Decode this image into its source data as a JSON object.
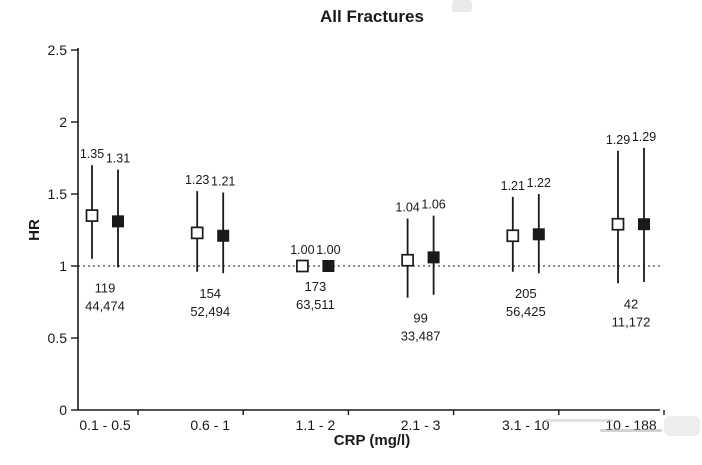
{
  "chart_data": {
    "type": "scatter",
    "subtype": "forest-plot-point-estimates-with-ci",
    "title": "All Fractures",
    "xlabel": "CRP (mg/l)",
    "ylabel": "HR",
    "ylim": [
      0,
      2.5
    ],
    "yticks": {
      "values": [
        0,
        0.5,
        1,
        1.5,
        2,
        2.5
      ],
      "labels": [
        "0",
        "0.5",
        "1",
        "1.5",
        "2",
        "2.5"
      ]
    },
    "reference_line_y": 1.0,
    "grid": false,
    "legend": "none",
    "categories": [
      "0.1 - 0.5",
      "0.6 - 1",
      "1.1 - 2",
      "2.1 - 3",
      "3.1 - 10",
      "10 - 188"
    ],
    "counts": [
      {
        "line1": "119",
        "line2": "44,474"
      },
      {
        "line1": "154",
        "line2": "52,494"
      },
      {
        "line1": "173",
        "line2": "63,511"
      },
      {
        "line1": "99",
        "line2": "33,487"
      },
      {
        "line1": "205",
        "line2": "56,425"
      },
      {
        "line1": "42",
        "line2": "11,172"
      }
    ],
    "series": [
      {
        "name": "open-square-series",
        "marker": "open-square",
        "labels": [
          "1.35",
          "1.23",
          "1.00",
          "1.04",
          "1.21",
          "1.29"
        ],
        "values": [
          1.35,
          1.23,
          1.0,
          1.04,
          1.21,
          1.29
        ],
        "ci_low": [
          1.05,
          0.96,
          1.0,
          0.78,
          0.96,
          0.88
        ],
        "ci_high": [
          1.7,
          1.52,
          1.0,
          1.33,
          1.48,
          1.8
        ]
      },
      {
        "name": "filled-square-series",
        "marker": "filled-square",
        "labels": [
          "1.31",
          "1.21",
          "1.00",
          "1.06",
          "1.22",
          "1.29"
        ],
        "values": [
          1.31,
          1.21,
          1.0,
          1.06,
          1.22,
          1.29
        ],
        "ci_low": [
          0.99,
          0.95,
          1.0,
          0.8,
          0.95,
          0.89
        ],
        "ci_high": [
          1.67,
          1.51,
          1.0,
          1.35,
          1.5,
          1.82
        ]
      }
    ],
    "colors": {
      "foreground": "#1a1a1a",
      "background": "#ffffff"
    }
  }
}
